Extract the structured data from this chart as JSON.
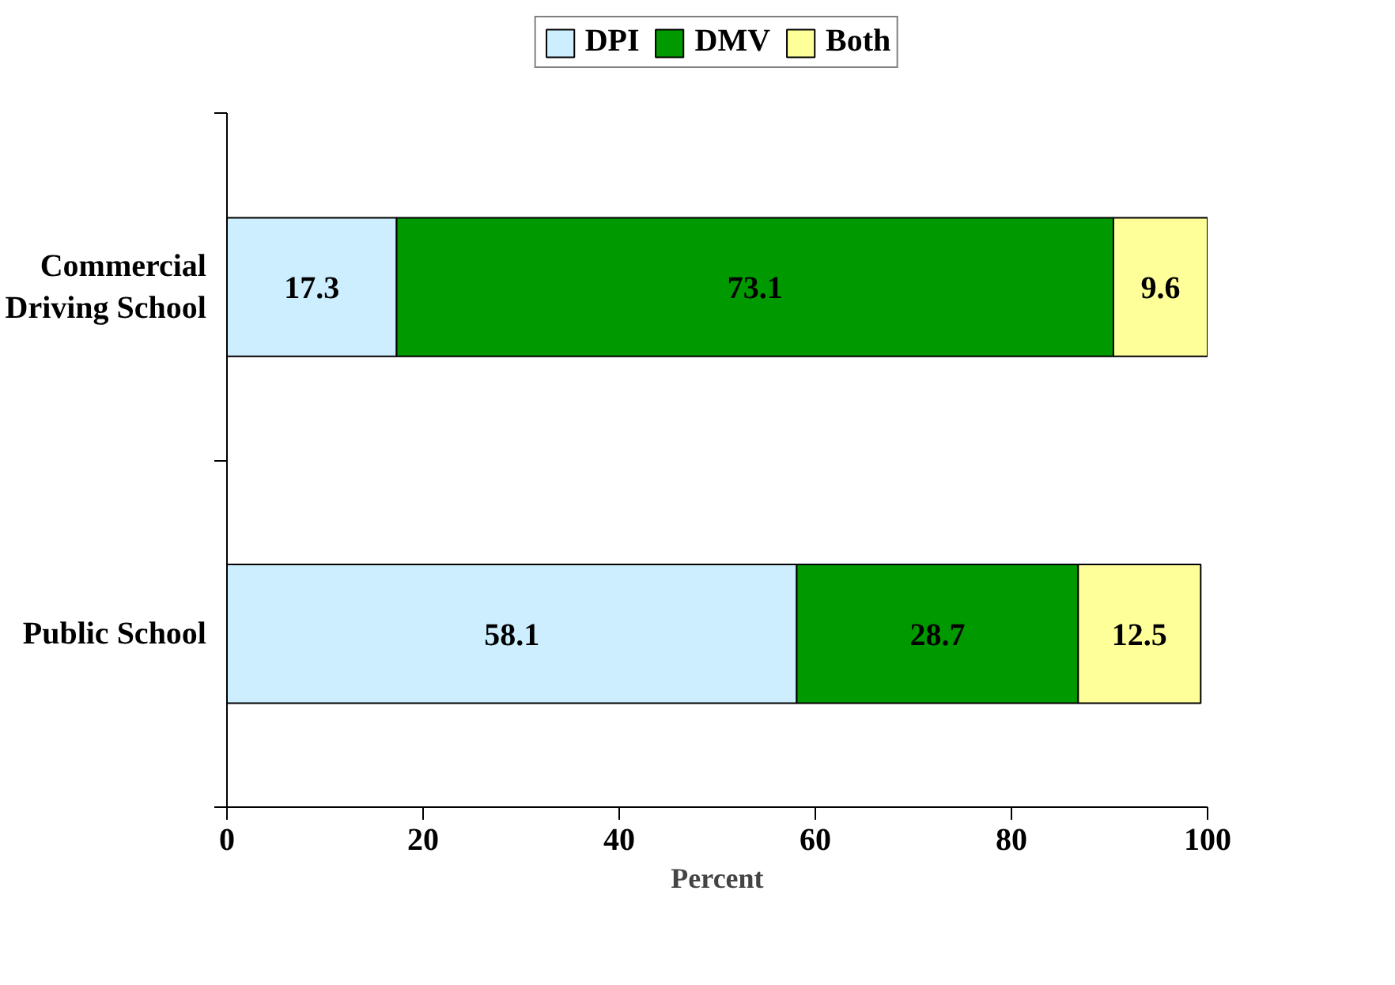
{
  "chart_data": {
    "type": "bar",
    "orientation": "horizontal",
    "stacked": true,
    "xlabel": "Percent",
    "categories": [
      "Commercial\nDriving School",
      "Public School"
    ],
    "series": [
      {
        "name": "DPI",
        "color": "#cceeff",
        "values": [
          17.3,
          58.1
        ]
      },
      {
        "name": "DMV",
        "color": "#009900",
        "values": [
          73.1,
          28.7
        ]
      },
      {
        "name": "Both",
        "color": "#ffff99",
        "values": [
          9.6,
          12.5
        ]
      }
    ],
    "xlim": [
      0,
      100
    ],
    "xticks": [
      0,
      20,
      40,
      60,
      80,
      100
    ],
    "data_labels": true,
    "legend": "top",
    "grid": false
  }
}
